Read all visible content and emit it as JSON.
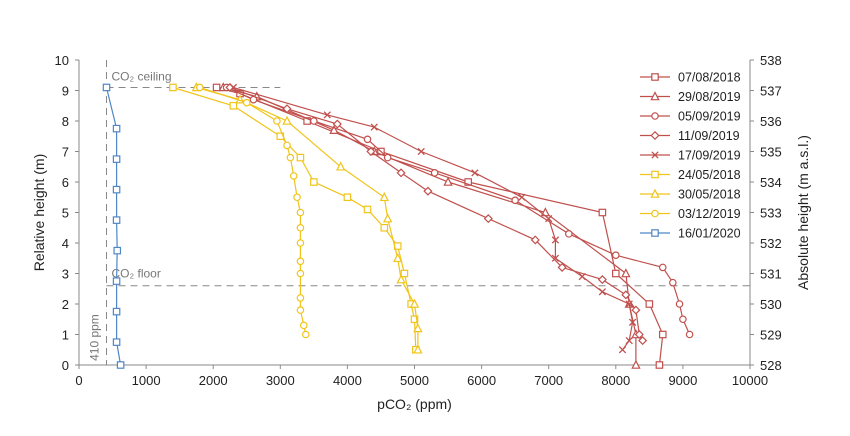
{
  "chart_data": {
    "type": "line",
    "xlabel": "pCO₂ (ppm)",
    "ylabel_left": "Relative height (m)",
    "ylabel_right": "Absolute height (m a.s.l.)",
    "xlim": [
      0,
      10000
    ],
    "ylim_left": [
      0,
      10
    ],
    "ylim_right": [
      528,
      538
    ],
    "x_ticks": [
      "0",
      "1000",
      "2000",
      "3000",
      "4000",
      "5000",
      "6000",
      "7000",
      "8000",
      "9000",
      "10000"
    ],
    "y_ticks_left": [
      "0",
      "1",
      "2",
      "3",
      "4",
      "5",
      "6",
      "7",
      "8",
      "9",
      "10"
    ],
    "y_ticks_right": [
      "528",
      "529",
      "530",
      "531",
      "532",
      "533",
      "534",
      "535",
      "536",
      "537",
      "538"
    ],
    "grid": false,
    "legend_position": "right",
    "annotations": {
      "ceiling_label": "CO₂ ceiling",
      "floor_label": "CO₂ floor",
      "atm_label": "410 ppm"
    },
    "reference_lines": {
      "ceiling_y": 9.1,
      "floor_y": 2.6,
      "atm_x": 410
    },
    "series": [
      {
        "name": "07/08/2018",
        "color": "#c0504d",
        "marker": "square",
        "points": [
          [
            2050,
            9.1
          ],
          [
            2400,
            8.9
          ],
          [
            3400,
            8.0
          ],
          [
            4500,
            7.0
          ],
          [
            5800,
            6.0
          ],
          [
            7800,
            5.0
          ],
          [
            8000,
            3.0
          ],
          [
            8500,
            2.0
          ],
          [
            8700,
            1.0
          ],
          [
            8650,
            0.0
          ]
        ]
      },
      {
        "name": "29/08/2019",
        "color": "#c0504d",
        "marker": "triangle",
        "points": [
          [
            2150,
            9.1
          ],
          [
            2650,
            8.8
          ],
          [
            3800,
            7.7
          ],
          [
            4400,
            7.0
          ],
          [
            5500,
            6.0
          ],
          [
            6950,
            5.0
          ],
          [
            8150,
            3.0
          ],
          [
            8200,
            2.0
          ],
          [
            8300,
            1.0
          ],
          [
            8300,
            0.0
          ]
        ]
      },
      {
        "name": "05/09/2019",
        "color": "#c0504d",
        "marker": "circle",
        "points": [
          [
            2200,
            9.1
          ],
          [
            2600,
            8.7
          ],
          [
            3500,
            8.0
          ],
          [
            4300,
            7.4
          ],
          [
            4600,
            6.8
          ],
          [
            5300,
            6.3
          ],
          [
            6500,
            5.4
          ],
          [
            7300,
            4.3
          ],
          [
            8000,
            3.6
          ],
          [
            8700,
            3.2
          ],
          [
            8850,
            2.7
          ],
          [
            8950,
            2.0
          ],
          [
            9000,
            1.5
          ],
          [
            9100,
            1.0
          ]
        ]
      },
      {
        "name": "11/09/2019",
        "color": "#c0504d",
        "marker": "diamond",
        "points": [
          [
            2250,
            9.1
          ],
          [
            3100,
            8.4
          ],
          [
            3850,
            7.9
          ],
          [
            4350,
            7.0
          ],
          [
            4800,
            6.3
          ],
          [
            5200,
            5.7
          ],
          [
            6100,
            4.8
          ],
          [
            6800,
            4.1
          ],
          [
            7200,
            3.2
          ],
          [
            7800,
            2.8
          ],
          [
            8150,
            2.3
          ],
          [
            8300,
            1.8
          ],
          [
            8350,
            1.0
          ],
          [
            8400,
            0.8
          ]
        ]
      },
      {
        "name": "17/09/2019",
        "color": "#c0504d",
        "marker": "x",
        "points": [
          [
            2300,
            9.1
          ],
          [
            3700,
            8.2
          ],
          [
            4400,
            7.8
          ],
          [
            5100,
            7.0
          ],
          [
            5900,
            6.3
          ],
          [
            6600,
            5.5
          ],
          [
            7000,
            4.8
          ],
          [
            7100,
            4.1
          ],
          [
            7100,
            3.5
          ],
          [
            7500,
            2.9
          ],
          [
            7800,
            2.4
          ],
          [
            8200,
            2.0
          ],
          [
            8250,
            1.4
          ],
          [
            8200,
            0.8
          ],
          [
            8100,
            0.5
          ]
        ]
      },
      {
        "name": "24/05/2018",
        "color": "#f0c419",
        "marker": "square",
        "points": [
          [
            1400,
            9.1
          ],
          [
            2300,
            8.5
          ],
          [
            3000,
            7.5
          ],
          [
            3300,
            6.8
          ],
          [
            3500,
            6.0
          ],
          [
            4000,
            5.5
          ],
          [
            4300,
            5.1
          ],
          [
            4550,
            4.5
          ],
          [
            4750,
            3.9
          ],
          [
            4850,
            3.0
          ],
          [
            4950,
            2.0
          ],
          [
            5000,
            1.5
          ],
          [
            5020,
            0.5
          ]
        ]
      },
      {
        "name": "30/05/2018",
        "color": "#f0c419",
        "marker": "triangle",
        "points": [
          [
            1750,
            9.1
          ],
          [
            2400,
            8.7
          ],
          [
            3100,
            8.0
          ],
          [
            3900,
            6.5
          ],
          [
            4550,
            5.5
          ],
          [
            4600,
            4.8
          ],
          [
            4750,
            3.5
          ],
          [
            4800,
            2.8
          ],
          [
            5000,
            2.0
          ],
          [
            5050,
            1.2
          ],
          [
            5050,
            0.5
          ]
        ]
      },
      {
        "name": "03/12/2019",
        "color": "#f0c419",
        "marker": "circle",
        "points": [
          [
            1800,
            9.1
          ],
          [
            2500,
            8.6
          ],
          [
            2950,
            8.0
          ],
          [
            3100,
            7.2
          ],
          [
            3150,
            6.8
          ],
          [
            3200,
            6.2
          ],
          [
            3250,
            5.5
          ],
          [
            3300,
            5.0
          ],
          [
            3300,
            4.5
          ],
          [
            3300,
            4.0
          ],
          [
            3300,
            3.4
          ],
          [
            3300,
            3.0
          ],
          [
            3300,
            2.2
          ],
          [
            3300,
            1.8
          ],
          [
            3350,
            1.3
          ],
          [
            3380,
            1.0
          ]
        ]
      },
      {
        "name": "16/01/2020",
        "color": "#4f86c6",
        "marker": "square",
        "points": [
          [
            410,
            9.1
          ],
          [
            560,
            7.75
          ],
          [
            560,
            6.75
          ],
          [
            560,
            5.75
          ],
          [
            560,
            4.75
          ],
          [
            570,
            3.75
          ],
          [
            560,
            2.75
          ],
          [
            560,
            1.75
          ],
          [
            560,
            0.75
          ],
          [
            620,
            0.0
          ]
        ]
      }
    ]
  }
}
